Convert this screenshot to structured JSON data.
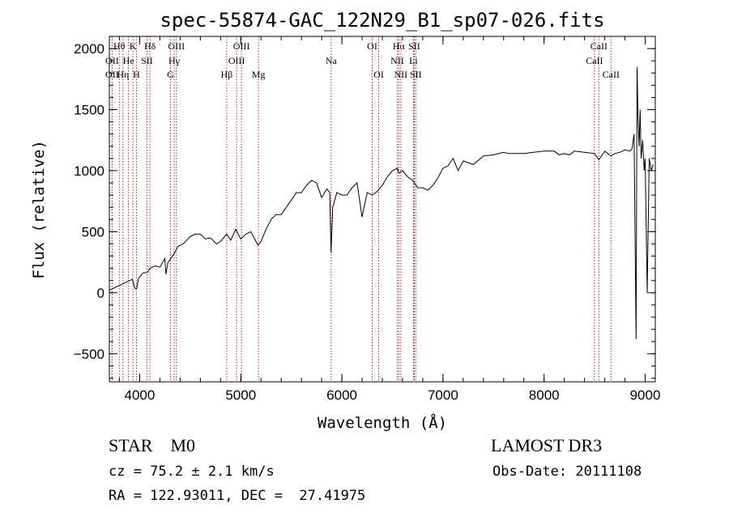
{
  "chart_data": {
    "type": "line",
    "title": "spec-55874-GAC_122N29_B1_sp07-026.fits",
    "xlabel": "Wavelength (Å)",
    "ylabel": "Flux (relative)",
    "xlim": [
      3700,
      9100
    ],
    "ylim": [
      -730,
      2100
    ],
    "x_ticks": [
      4000,
      5000,
      6000,
      7000,
      8000,
      9000
    ],
    "y_ticks": [
      -500,
      0,
      500,
      1000,
      1500,
      2000
    ],
    "grid": false,
    "series": [
      {
        "x": [
          3700,
          3750,
          3800,
          3850,
          3900,
          3930,
          3950,
          3968,
          3990,
          4030,
          4080,
          4100,
          4150,
          4200,
          4250,
          4260,
          4280,
          4300,
          4340,
          4380,
          4430,
          4500,
          4550,
          4600,
          4650,
          4700,
          4760,
          4800,
          4861,
          4900,
          4950,
          5000,
          5050,
          5100,
          5150,
          5172,
          5200,
          5250,
          5300,
          5350,
          5400,
          5450,
          5500,
          5550,
          5600,
          5650,
          5700,
          5750,
          5800,
          5850,
          5880,
          5893,
          5910,
          5950,
          6000,
          6050,
          6100,
          6150,
          6200,
          6250,
          6300,
          6350,
          6400,
          6450,
          6500,
          6550,
          6563,
          6600,
          6650,
          6700,
          6750,
          6800,
          6850,
          6900,
          6950,
          7000,
          7050,
          7100,
          7150,
          7200,
          7300,
          7400,
          7500,
          7600,
          7650,
          7700,
          7800,
          7900,
          8000,
          8100,
          8150,
          8200,
          8250,
          8300,
          8400,
          8498,
          8542,
          8600,
          8662,
          8700,
          8750,
          8800,
          8850,
          8870,
          8890,
          8910,
          8920,
          8930,
          8940,
          8950,
          8960,
          8975,
          8990,
          9000,
          9020,
          9040,
          9060,
          9080
        ],
        "y": [
          20,
          40,
          60,
          80,
          100,
          110,
          40,
          30,
          120,
          160,
          170,
          200,
          220,
          210,
          280,
          150,
          250,
          270,
          320,
          380,
          400,
          460,
          480,
          480,
          440,
          450,
          400,
          420,
          480,
          430,
          520,
          440,
          480,
          500,
          420,
          390,
          420,
          520,
          600,
          640,
          640,
          700,
          760,
          820,
          820,
          880,
          920,
          900,
          780,
          850,
          820,
          330,
          700,
          820,
          800,
          800,
          860,
          900,
          620,
          820,
          800,
          830,
          880,
          950,
          1000,
          1020,
          980,
          1000,
          950,
          920,
          860,
          860,
          840,
          880,
          940,
          1020,
          1040,
          1100,
          1000,
          1080,
          1050,
          1120,
          1130,
          1150,
          1140,
          1140,
          1140,
          1150,
          1160,
          1160,
          1130,
          1140,
          1130,
          1160,
          1150,
          1140,
          1090,
          1160,
          1120,
          1140,
          1150,
          1170,
          1160,
          1180,
          1300,
          -380,
          1850,
          1400,
          1200,
          1500,
          1100,
          1250,
          1000,
          1100,
          0,
          1100,
          1000,
          1050
        ]
      }
    ],
    "lines": [
      {
        "name": "Hθ",
        "x": 3798,
        "row": 0
      },
      {
        "name": "OII",
        "x": 3727,
        "row": 1
      },
      {
        "name": "OII",
        "x": 3727,
        "row": 2
      },
      {
        "name": "K",
        "x": 3933,
        "row": 0
      },
      {
        "name": "He",
        "x": 3889,
        "row": 1
      },
      {
        "name": "Hη",
        "x": 3835,
        "row": 2
      },
      {
        "name": "Hδ",
        "x": 4102,
        "row": 0
      },
      {
        "name": "SII",
        "x": 4072,
        "row": 1
      },
      {
        "name": "H",
        "x": 3968,
        "row": 2
      },
      {
        "name": "OIII",
        "x": 4363,
        "row": 0
      },
      {
        "name": "Hγ",
        "x": 4341,
        "row": 1
      },
      {
        "name": "G",
        "x": 4305,
        "row": 2
      },
      {
        "name": "OIII",
        "x": 5007,
        "row": 0
      },
      {
        "name": "OIII",
        "x": 4959,
        "row": 1
      },
      {
        "name": "Hβ",
        "x": 4861,
        "row": 2
      },
      {
        "name": "Mg",
        "x": 5175,
        "row": 2
      },
      {
        "name": "Na",
        "x": 5894,
        "row": 1
      },
      {
        "name": "OI",
        "x": 6300,
        "row": 0
      },
      {
        "name": "OI",
        "x": 6364,
        "row": 2
      },
      {
        "name": "Hα",
        "x": 6563,
        "row": 0
      },
      {
        "name": "NII",
        "x": 6548,
        "row": 1
      },
      {
        "name": "NII",
        "x": 6583,
        "row": 2
      },
      {
        "name": "SII",
        "x": 6716,
        "row": 0
      },
      {
        "name": "Li",
        "x": 6708,
        "row": 1
      },
      {
        "name": "SII",
        "x": 6731,
        "row": 2
      },
      {
        "name": "CaII",
        "x": 8542,
        "row": 0
      },
      {
        "name": "CaII",
        "x": 8498,
        "row": 1
      },
      {
        "name": "CaII",
        "x": 8662,
        "row": 2
      }
    ],
    "line_color": "#b22222"
  },
  "info": {
    "class_label": "STAR    M0",
    "survey": "LAMOST DR3",
    "cz": "cz = 75.2 ± 2.1 km/s",
    "obs_date": "Obs-Date: 20111108",
    "radec": "RA = 122.93011, DEC =  27.41975"
  }
}
